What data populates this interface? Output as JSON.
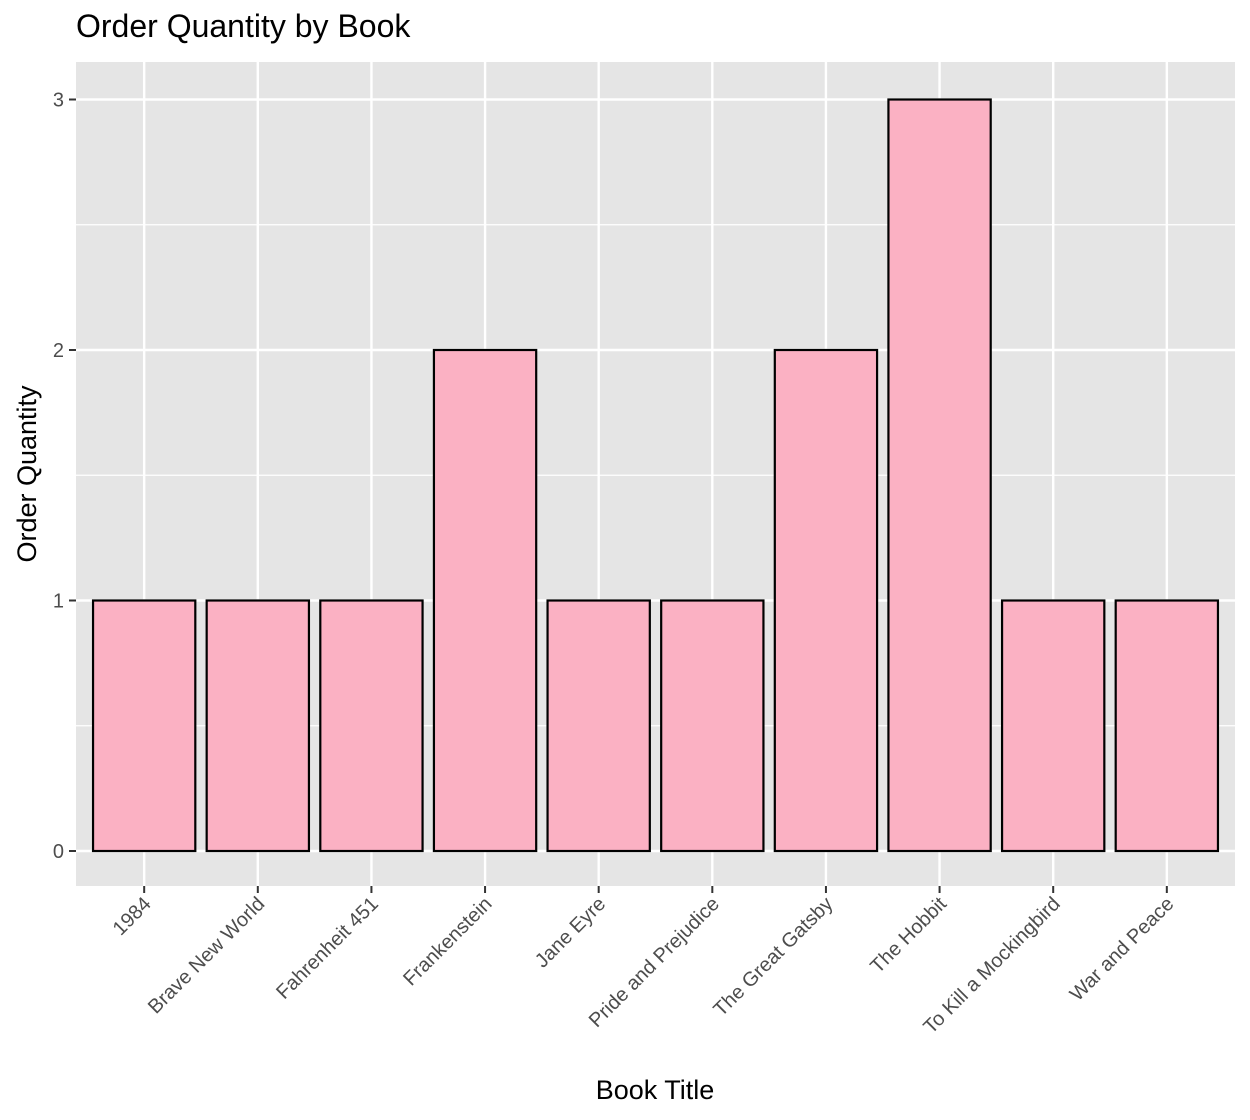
{
  "chart_data": {
    "type": "bar",
    "title": "Order Quantity by Book",
    "xlabel": "Book Title",
    "ylabel": "Order Quantity",
    "categories": [
      "1984",
      "Brave New World",
      "Fahrenheit 451",
      "Frankenstein",
      "Jane Eyre",
      "Pride and Prejudice",
      "The Great Gatsby",
      "The Hobbit",
      "To Kill a Mockingbird",
      "War and Peace"
    ],
    "values": [
      1,
      1,
      1,
      2,
      1,
      1,
      2,
      3,
      1,
      1
    ],
    "ylim": [
      0,
      3
    ],
    "y_ticks": [
      "0",
      "1",
      "2",
      "3"
    ],
    "grid": true,
    "colors": {
      "bar_fill": "#FBB1C3",
      "bar_outline": "#000000",
      "panel_background": "#E5E5E5",
      "grid_line": "#FFFFFF"
    }
  }
}
